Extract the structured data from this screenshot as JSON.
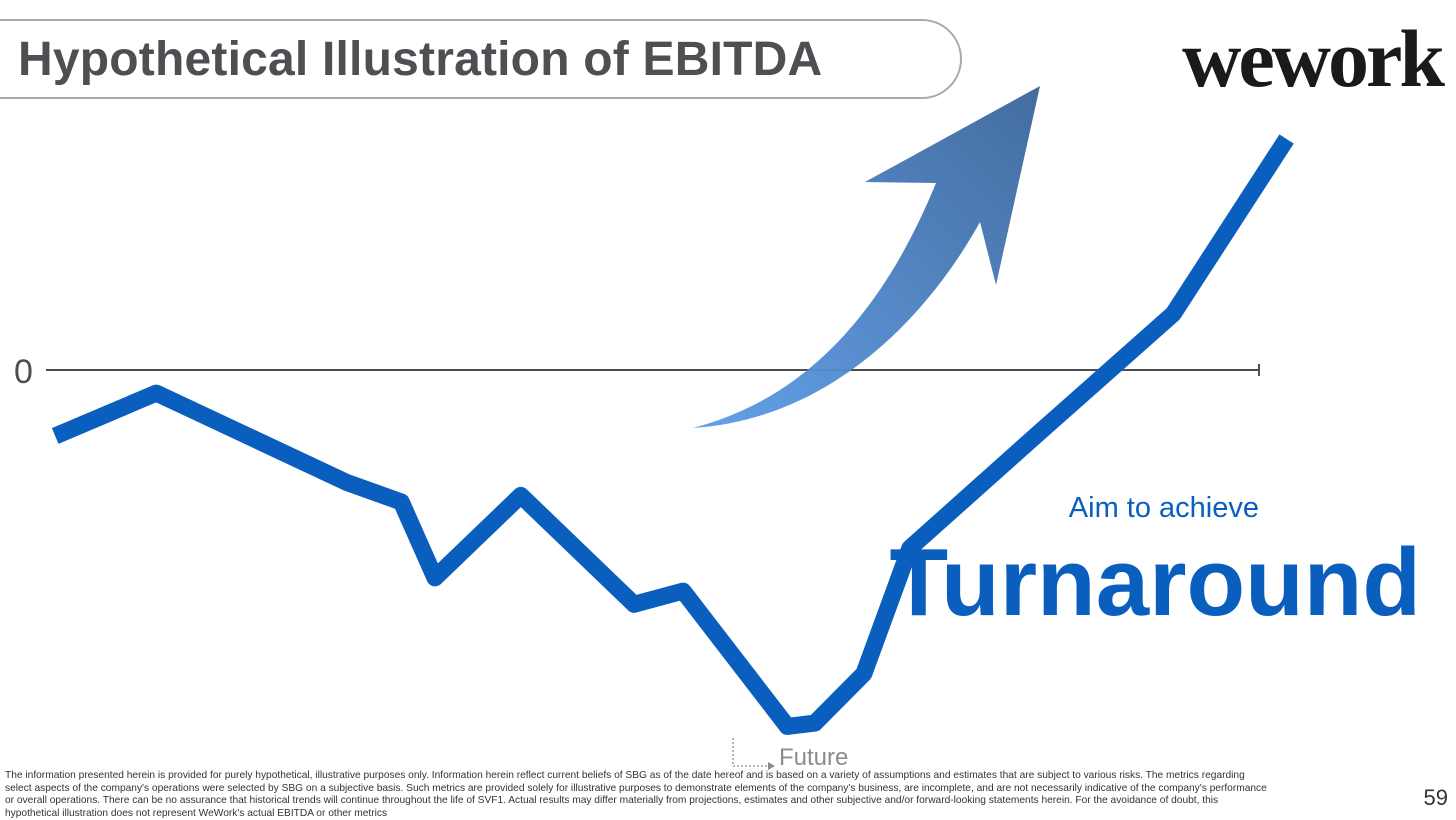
{
  "header": {
    "title": "Hypothetical Illustration of EBITDA",
    "logo_text": "wework"
  },
  "chart_data": {
    "type": "line",
    "title": "Hypothetical Illustration of EBITDA",
    "xlabel": "",
    "ylabel": "",
    "y_tick_labels": [
      "0"
    ],
    "x_annotation": "Future",
    "grid": false,
    "series": [
      {
        "color": "#0a5fbe",
        "points": [
          [
            0,
            -20
          ],
          [
            3.3,
            -7
          ],
          [
            9.5,
            -34
          ],
          [
            11.3,
            -40
          ],
          [
            12.4,
            -63
          ],
          [
            15.2,
            -38
          ],
          [
            18.9,
            -71
          ],
          [
            20.5,
            -67
          ],
          [
            23.9,
            -108
          ],
          [
            24.8,
            -107
          ],
          [
            26.4,
            -92
          ],
          [
            27.9,
            -54
          ],
          [
            32,
            -20
          ],
          [
            36.5,
            17
          ],
          [
            40.2,
            70
          ]
        ]
      }
    ],
    "xlim": [
      -0.3,
      39.3
    ],
    "ylim": [
      -125,
      70
    ],
    "arrow": {
      "color_start": "#5b9be8",
      "color_end": "#3a6599",
      "direction": "up-right"
    }
  },
  "callout": {
    "line1": "Aim to achieve",
    "line2": "Turnaround"
  },
  "footer": {
    "disclaimer": "The information presented herein is provided for purely hypothetical, illustrative purposes only. Information herein reflect current beliefs of SBG as of the date hereof and is based on a variety of assumptions and estimates that are subject to various risks. The metrics regarding select aspects of the company's operations were selected by SBG on a subjective basis. Such metrics are provided solely for illustrative purposes to demonstrate elements of the company's business, are incomplete, and are not necessarily indicative of the company's performance or overall operations. There can be no assurance that historical trends will continue throughout the life of SVF1. Actual results may differ materially from projections, estimates and other subjective and/or forward-looking statements herein. For the avoidance of doubt, this hypothetical illustration does not represent WeWork's actual EBITDA or other metrics",
    "page_number": "59"
  }
}
